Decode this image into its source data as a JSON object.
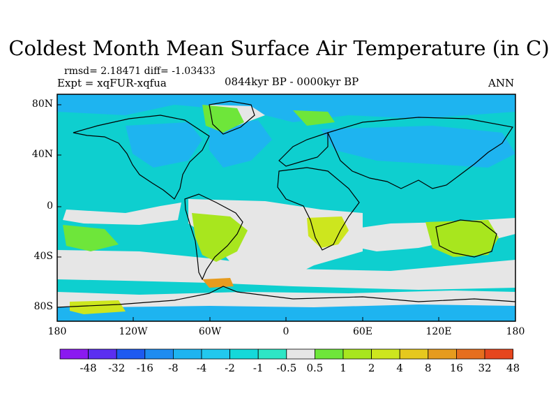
{
  "title": "Coldest Month Mean Surface Air Temperature (in C)",
  "stats_text": "rmsd= 2.18471  diff= -1.03433",
  "experiment_text": "Expt = xqFUR-xqfua",
  "period_text": "0844kyr BP - 0000kyr BP",
  "season_text": "ANN",
  "map": {
    "lon_range": [
      -180,
      180
    ],
    "lat_range": [
      -90,
      90
    ],
    "y_ticks": [
      {
        "label": "80N",
        "lat": 80
      },
      {
        "label": "40N",
        "lat": 40
      },
      {
        "label": "0",
        "lat": 0
      },
      {
        "label": "40S",
        "lat": -40
      },
      {
        "label": "80S",
        "lat": -80
      }
    ],
    "x_ticks": [
      {
        "label": "180",
        "lon": -180
      },
      {
        "label": "120W",
        "lon": -120
      },
      {
        "label": "60W",
        "lon": -60
      },
      {
        "label": "0",
        "lon": 0
      },
      {
        "label": "60E",
        "lon": 60
      },
      {
        "label": "120E",
        "lon": 120
      },
      {
        "label": "180",
        "lon": 180
      }
    ],
    "background_color": "#0ecfcf"
  },
  "colorbar": {
    "colors": [
      "#8b19f0",
      "#5b2ff0",
      "#1e5af0",
      "#1e8cf0",
      "#1eb4f0",
      "#22c8ee",
      "#15d9d9",
      "#2ee6c5",
      "#e6e6e6",
      "#6ee63a",
      "#a8e61e",
      "#cde61e",
      "#e6c81e",
      "#e69b1e",
      "#e66e1e",
      "#e6461e"
    ],
    "labels": [
      "-48",
      "-32",
      "-16",
      "-8",
      "-4",
      "-2",
      "-1",
      "-0.5",
      "0.5",
      "1",
      "2",
      "4",
      "8",
      "16",
      "32",
      "48"
    ]
  }
}
